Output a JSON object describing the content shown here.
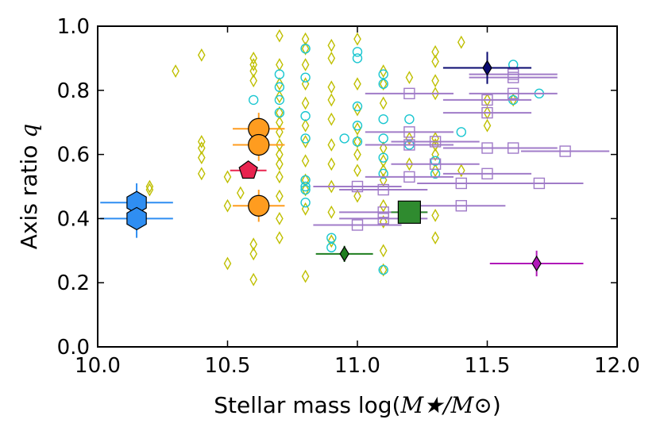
{
  "chart_data": {
    "type": "scatter",
    "title": "",
    "xlabel": {
      "prefix": "Stellar mass log(",
      "math": "M★/M⊙",
      "suffix": ")"
    },
    "ylabel": {
      "prefix": "Axis ratio ",
      "math": "q"
    },
    "xlim": [
      10.0,
      12.0
    ],
    "ylim": [
      0.0,
      1.0
    ],
    "xticks": [
      "10.0",
      "10.5",
      "11.0",
      "11.5",
      "12.0"
    ],
    "yticks": [
      "0.0",
      "0.2",
      "0.4",
      "0.6",
      "0.8",
      "1.0"
    ],
    "grid": false,
    "legend": null,
    "series": [
      {
        "name": "yellow-diamonds",
        "marker": "diamond-open",
        "color": "#bfbf00",
        "points": [
          [
            10.3,
            0.86
          ],
          [
            10.4,
            0.91
          ],
          [
            10.4,
            0.64
          ],
          [
            10.4,
            0.62
          ],
          [
            10.4,
            0.59
          ],
          [
            10.4,
            0.54
          ],
          [
            10.2,
            0.5
          ],
          [
            10.2,
            0.49
          ],
          [
            10.5,
            0.53
          ],
          [
            10.5,
            0.44
          ],
          [
            10.5,
            0.26
          ],
          [
            10.55,
            0.48
          ],
          [
            10.6,
            0.9
          ],
          [
            10.6,
            0.88
          ],
          [
            10.6,
            0.86
          ],
          [
            10.6,
            0.83
          ],
          [
            10.6,
            0.32
          ],
          [
            10.6,
            0.29
          ],
          [
            10.6,
            0.21
          ],
          [
            10.7,
            0.97
          ],
          [
            10.7,
            0.88
          ],
          [
            10.7,
            0.82
          ],
          [
            10.7,
            0.78
          ],
          [
            10.7,
            0.73
          ],
          [
            10.7,
            0.7
          ],
          [
            10.7,
            0.67
          ],
          [
            10.7,
            0.63
          ],
          [
            10.7,
            0.6
          ],
          [
            10.7,
            0.57
          ],
          [
            10.7,
            0.53
          ],
          [
            10.7,
            0.47
          ],
          [
            10.7,
            0.4
          ],
          [
            10.7,
            0.34
          ],
          [
            10.8,
            0.96
          ],
          [
            10.8,
            0.93
          ],
          [
            10.8,
            0.88
          ],
          [
            10.8,
            0.82
          ],
          [
            10.8,
            0.76
          ],
          [
            10.8,
            0.69
          ],
          [
            10.8,
            0.64
          ],
          [
            10.8,
            0.58
          ],
          [
            10.8,
            0.52
          ],
          [
            10.8,
            0.49
          ],
          [
            10.8,
            0.43
          ],
          [
            10.8,
            0.22
          ],
          [
            10.9,
            0.94
          ],
          [
            10.9,
            0.9
          ],
          [
            10.9,
            0.81
          ],
          [
            10.9,
            0.77
          ],
          [
            10.9,
            0.71
          ],
          [
            10.9,
            0.63
          ],
          [
            10.9,
            0.57
          ],
          [
            10.9,
            0.5
          ],
          [
            10.9,
            0.42
          ],
          [
            10.9,
            0.33
          ],
          [
            11.0,
            0.96
          ],
          [
            11.0,
            0.82
          ],
          [
            11.0,
            0.74
          ],
          [
            11.0,
            0.68
          ],
          [
            11.0,
            0.64
          ],
          [
            11.0,
            0.6
          ],
          [
            11.0,
            0.55
          ],
          [
            11.0,
            0.47
          ],
          [
            11.1,
            0.86
          ],
          [
            11.1,
            0.82
          ],
          [
            11.1,
            0.76
          ],
          [
            11.1,
            0.62
          ],
          [
            11.1,
            0.58
          ],
          [
            11.1,
            0.55
          ],
          [
            11.1,
            0.52
          ],
          [
            11.1,
            0.44
          ],
          [
            11.1,
            0.39
          ],
          [
            11.1,
            0.3
          ],
          [
            11.1,
            0.24
          ],
          [
            11.2,
            0.84
          ],
          [
            11.2,
            0.65
          ],
          [
            11.2,
            0.57
          ],
          [
            11.3,
            0.92
          ],
          [
            11.3,
            0.89
          ],
          [
            11.3,
            0.83
          ],
          [
            11.3,
            0.79
          ],
          [
            11.3,
            0.65
          ],
          [
            11.3,
            0.63
          ],
          [
            11.3,
            0.6
          ],
          [
            11.3,
            0.55
          ],
          [
            11.3,
            0.41
          ],
          [
            11.3,
            0.34
          ],
          [
            11.4,
            0.55
          ],
          [
            11.4,
            0.95
          ],
          [
            11.5,
            0.77
          ],
          [
            11.5,
            0.73
          ],
          [
            11.5,
            0.69
          ],
          [
            11.6,
            0.77
          ]
        ]
      },
      {
        "name": "cyan-circles",
        "marker": "circle-open",
        "color": "#19c6d0",
        "points": [
          [
            10.6,
            0.77
          ],
          [
            10.7,
            0.85
          ],
          [
            10.7,
            0.77
          ],
          [
            10.7,
            0.73
          ],
          [
            10.8,
            0.65
          ],
          [
            10.7,
            0.81
          ],
          [
            10.8,
            0.84
          ],
          [
            10.8,
            0.93
          ],
          [
            10.8,
            0.72
          ],
          [
            10.8,
            0.5
          ],
          [
            10.8,
            0.49
          ],
          [
            10.8,
            0.52
          ],
          [
            10.8,
            0.45
          ],
          [
            10.9,
            0.34
          ],
          [
            10.9,
            0.31
          ],
          [
            10.95,
            0.65
          ],
          [
            11.0,
            0.69
          ],
          [
            11.0,
            0.75
          ],
          [
            11.0,
            0.64
          ],
          [
            11.0,
            0.92
          ],
          [
            11.0,
            0.9
          ],
          [
            11.1,
            0.85
          ],
          [
            11.1,
            0.82
          ],
          [
            11.1,
            0.71
          ],
          [
            11.1,
            0.65
          ],
          [
            11.1,
            0.59
          ],
          [
            11.1,
            0.54
          ],
          [
            11.1,
            0.24
          ],
          [
            11.2,
            0.71
          ],
          [
            11.2,
            0.63
          ],
          [
            11.3,
            0.58
          ],
          [
            11.3,
            0.54
          ],
          [
            11.4,
            0.67
          ],
          [
            11.6,
            0.88
          ],
          [
            11.6,
            0.77
          ],
          [
            11.7,
            0.79
          ]
        ]
      },
      {
        "name": "purple-squares",
        "marker": "square-open",
        "color": "#a07bc8",
        "xerr": 0.17,
        "points": [
          [
            11.6,
            0.84
          ],
          [
            11.6,
            0.85
          ],
          [
            11.6,
            0.79
          ],
          [
            11.2,
            0.79
          ],
          [
            11.5,
            0.77
          ],
          [
            11.5,
            0.73
          ],
          [
            11.2,
            0.67
          ],
          [
            11.3,
            0.64
          ],
          [
            11.2,
            0.63
          ],
          [
            11.5,
            0.62
          ],
          [
            11.6,
            0.62
          ],
          [
            11.8,
            0.61
          ],
          [
            11.3,
            0.57
          ],
          [
            11.5,
            0.54
          ],
          [
            11.4,
            0.51
          ],
          [
            11.7,
            0.51
          ],
          [
            11.4,
            0.44
          ],
          [
            11.1,
            0.49
          ],
          [
            11.0,
            0.5
          ],
          [
            11.2,
            0.53
          ],
          [
            11.1,
            0.42
          ],
          [
            11.0,
            0.38
          ],
          [
            11.1,
            0.4
          ]
        ]
      },
      {
        "name": "blue-hexagons",
        "marker": "hexagon",
        "color": "#2f8ef2",
        "points": [
          [
            10.15,
            0.45
          ],
          [
            10.15,
            0.4
          ]
        ],
        "xerr": 0.14,
        "yerr": 0.06
      },
      {
        "name": "orange-circles",
        "marker": "circle",
        "color": "#ff9c1f",
        "points": [
          [
            10.62,
            0.68
          ],
          [
            10.62,
            0.63
          ],
          [
            10.62,
            0.44
          ]
        ],
        "xerr": 0.1,
        "yerr": 0.05
      },
      {
        "name": "red-pentagon",
        "marker": "pentagon",
        "color": "#e8244f",
        "points": [
          [
            10.58,
            0.55
          ]
        ],
        "xerr": 0.07
      },
      {
        "name": "green-square",
        "marker": "square",
        "color": "#2f8b2f",
        "points": [
          [
            11.2,
            0.42
          ]
        ],
        "xerr": 0.07
      },
      {
        "name": "green-diamond",
        "marker": "diamond",
        "color": "#1e7d1e",
        "points": [
          [
            10.95,
            0.29
          ]
        ],
        "xerr": 0.11,
        "yerr": 0.025
      },
      {
        "name": "navy-diamond",
        "marker": "diamond",
        "color": "#0a0a70",
        "points": [
          [
            11.5,
            0.87
          ]
        ],
        "xerr": 0.17,
        "yerr": 0.05
      },
      {
        "name": "magenta-diamond",
        "marker": "diamond",
        "color": "#b018b8",
        "points": [
          [
            11.69,
            0.26
          ]
        ],
        "xerr": 0.18,
        "yerr": 0.04
      }
    ]
  }
}
